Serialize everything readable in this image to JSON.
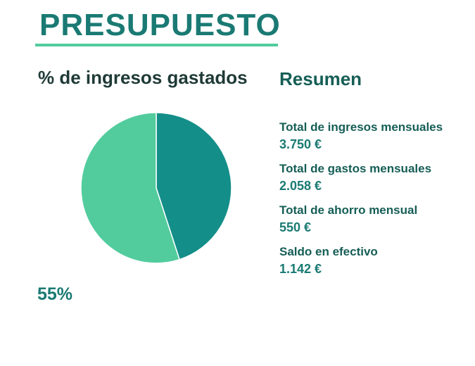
{
  "title": "PRESUPUESTO",
  "chart_heading": "% de ingresos gastados",
  "summary_heading": "Resumen",
  "percent_label": "55%",
  "colors": {
    "accent": "#1a7a73",
    "pie_spent": "#138e89",
    "pie_rest": "#52cc9d"
  },
  "summary": {
    "items": [
      {
        "label": "Total de ingresos mensuales",
        "value": "3.750 €"
      },
      {
        "label": "Total de gastos mensuales",
        "value": "2.058 €"
      },
      {
        "label": "Total de ahorro mensual",
        "value": "550 €"
      },
      {
        "label": "Saldo en efectivo",
        "value": "1.142 €"
      }
    ]
  },
  "chart_data": {
    "type": "pie",
    "title": "",
    "slices": [
      {
        "value": 45
      },
      {
        "value": 55
      }
    ]
  }
}
